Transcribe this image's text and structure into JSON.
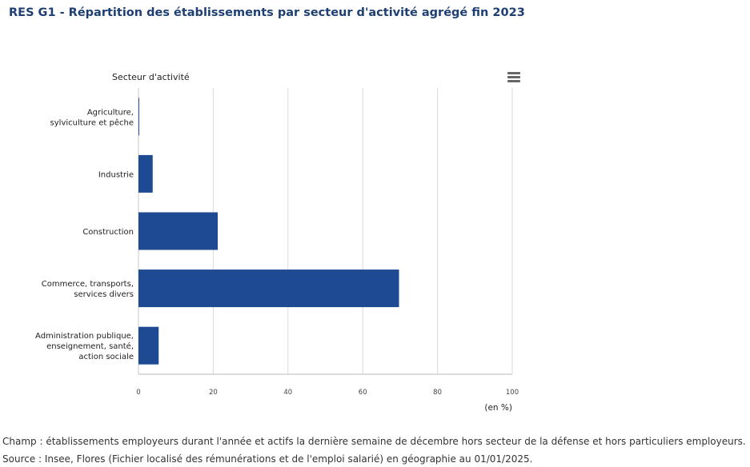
{
  "title": "RES G1 - Répartition des établissements par secteur d'activité agrégé fin 2023",
  "footnotes": {
    "champ": "Champ : établissements employeurs durant l'année et actifs la dernière semaine de décembre hors secteur de la défense et hors particuliers employeurs.",
    "source": "Source : Insee, Flores (Fichier localisé des rémunérations et de l'emploi salarié) en géographie au 01/01/2025."
  },
  "menu_icon": "hamburger-menu-icon",
  "colors": {
    "title": "#1d3f73",
    "bar": "#1d4a93",
    "grid": "#d9d9d9"
  },
  "chart_data": {
    "type": "bar",
    "orientation": "horizontal",
    "categories": [
      [
        "Agriculture,",
        "sylviculture et pêche"
      ],
      [
        "Industrie"
      ],
      [
        "Construction"
      ],
      [
        "Commerce, transports,",
        "services divers"
      ],
      [
        "Administration publique,",
        "enseignement, santé,",
        "action sociale"
      ]
    ],
    "values": [
      0.2,
      3.8,
      21.2,
      69.7,
      5.4
    ],
    "xlim": [
      0,
      100
    ],
    "xticks": [
      "0",
      "20",
      "40",
      "60",
      "80",
      "100"
    ],
    "ylabel": "Secteur d'activité",
    "xlabel": "(en %)",
    "grid": true,
    "legend": false
  }
}
